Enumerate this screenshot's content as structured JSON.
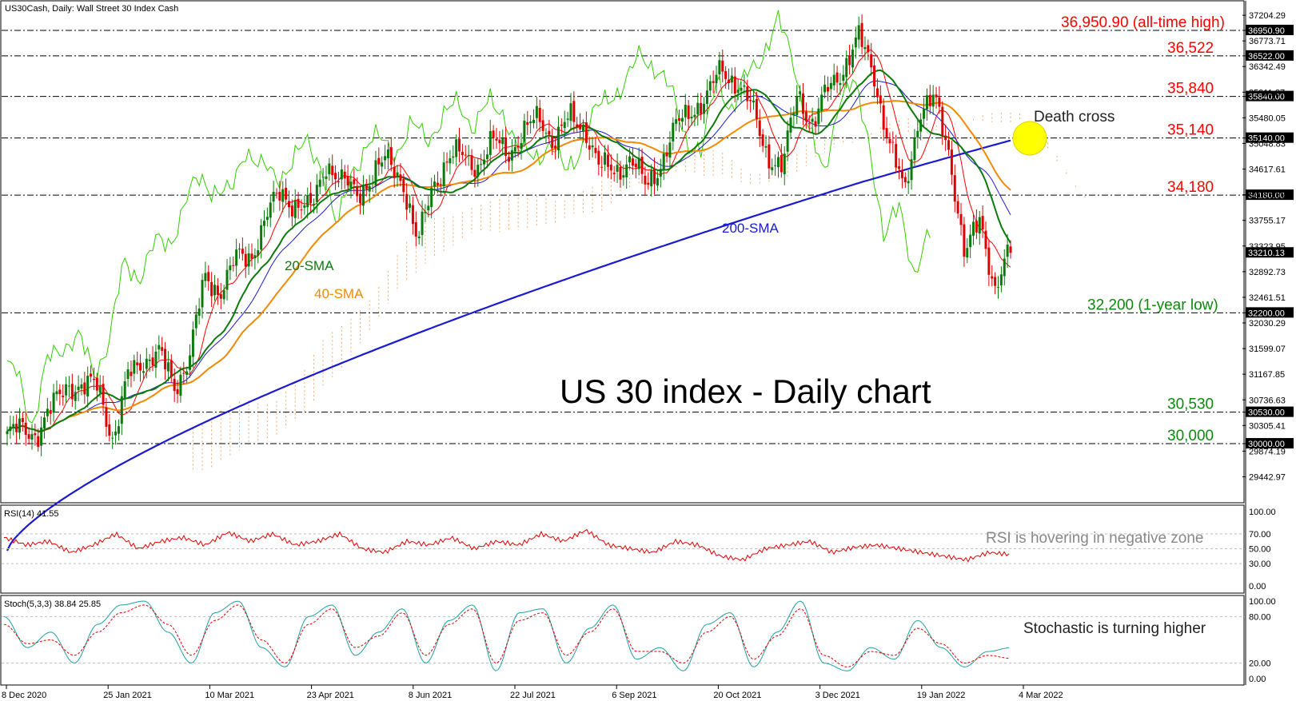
{
  "header": {
    "symbol_label": "US30Cash, Daily:  Wall Street 30 Index Cash",
    "chart_title": "US 30 index - Daily chart"
  },
  "colors": {
    "bull_candle": "#0b7a0b",
    "bear_candle": "#e00000",
    "sma20": "#0b7a0b",
    "sma40": "#f08a00",
    "sma200": "#1a1ad0",
    "tenkan": "#ff0000",
    "kijun": "#1a1ad0",
    "chikou": "#33cc00",
    "cloud": "#f0a060",
    "rsi_line": "#e00000",
    "stoch_main": "#20a0a0",
    "stoch_signal": "#e00000",
    "label_red": "#ff0000",
    "label_green": "#0b8a0b",
    "death_cross_marker": "#ffff00"
  },
  "chart_data": [
    {
      "type": "candlestick",
      "name": "price",
      "title": "US 30 index - Daily chart",
      "ylim": [
        29100,
        37300
      ],
      "y_ticks": [
        "37204.29",
        "36773.71",
        "36342.49",
        "35911.27",
        "35480.05",
        "35048.83",
        "34617.61",
        "34186.39",
        "33755.17",
        "33323.95",
        "32892.73",
        "32461.51",
        "32030.29",
        "31599.07",
        "31167.85",
        "30736.63",
        "30305.41",
        "29874.19",
        "29442.97"
      ],
      "x_tick_labels": [
        "8 Dec 2020",
        "25 Jan 2021",
        "10 Mar 2021",
        "23 Apr 2021",
        "8 Jun 2021",
        "22 Jul 2021",
        "6 Sep 2021",
        "20 Oct 2021",
        "3 Dec 2021",
        "19 Jan 2022",
        "4 Mar 2022"
      ],
      "close_path": [
        [
          "8 Dec 2020",
          30150
        ],
        [
          "16 Dec 2020",
          30230
        ],
        [
          "23 Dec 2020",
          30200
        ],
        [
          "31 Dec 2020",
          30600
        ],
        [
          "7 Jan 2021",
          31050
        ],
        [
          "15 Jan 2021",
          30900
        ],
        [
          "22 Jan 2021",
          30990
        ],
        [
          "29 Jan 2021",
          30050
        ],
        [
          "5 Feb 2021",
          31150
        ],
        [
          "12 Feb 2021",
          31450
        ],
        [
          "19 Feb 2021",
          31490
        ],
        [
          "26 Feb 2021",
          30950
        ],
        [
          "5 Mar 2021",
          31500
        ],
        [
          "12 Mar 2021",
          32750
        ],
        [
          "19 Mar 2021",
          32600
        ],
        [
          "26 Mar 2021",
          33070
        ],
        [
          "2 Apr 2021",
          33150
        ],
        [
          "9 Apr 2021",
          33800
        ],
        [
          "16 Apr 2021",
          34200
        ],
        [
          "23 Apr 2021",
          34050
        ],
        [
          "30 Apr 2021",
          33900
        ],
        [
          "7 May 2021",
          34780
        ],
        [
          "14 May 2021",
          34380
        ],
        [
          "21 May 2021",
          34200
        ],
        [
          "28 May 2021",
          34520
        ],
        [
          "4 Jun 2021",
          34750
        ],
        [
          "11 Jun 2021",
          34480
        ],
        [
          "18 Jun 2021",
          33300
        ],
        [
          "25 Jun 2021",
          34400
        ],
        [
          "2 Jul 2021",
          34780
        ],
        [
          "9 Jul 2021",
          34850
        ],
        [
          "16 Jul 2021",
          34700
        ],
        [
          "23 Jul 2021",
          35050
        ],
        [
          "30 Jul 2021",
          34950
        ],
        [
          "6 Aug 2021",
          35200
        ],
        [
          "13 Aug 2021",
          35500
        ],
        [
          "20 Aug 2021",
          35100
        ],
        [
          "27 Aug 2021",
          35450
        ],
        [
          "3 Sep 2021",
          35350
        ],
        [
          "10 Sep 2021",
          34600
        ],
        [
          "17 Sep 2021",
          34600
        ],
        [
          "24 Sep 2021",
          34800
        ],
        [
          "1 Oct 2021",
          34300
        ],
        [
          "8 Oct 2021",
          34750
        ],
        [
          "15 Oct 2021",
          35300
        ],
        [
          "22 Oct 2021",
          35650
        ],
        [
          "29 Oct 2021",
          35800
        ],
        [
          "5 Nov 2021",
          36300
        ],
        [
          "12 Nov 2021",
          36100
        ],
        [
          "19 Nov 2021",
          35600
        ],
        [
          "26 Nov 2021",
          34900
        ],
        [
          "3 Dec 2021",
          34600
        ],
        [
          "10 Dec 2021",
          35950
        ],
        [
          "17 Dec 2021",
          35350
        ],
        [
          "24 Dec 2021",
          35950
        ],
        [
          "31 Dec 2021",
          36350
        ],
        [
          "5 Jan 2022",
          36800
        ],
        [
          "12 Jan 2022",
          36250
        ],
        [
          "19 Jan 2022",
          35050
        ],
        [
          "26 Jan 2022",
          34200
        ],
        [
          "2 Feb 2022",
          35600
        ],
        [
          "9 Feb 2022",
          35750
        ],
        [
          "16 Feb 2022",
          34900
        ],
        [
          "23 Feb 2022",
          33100
        ],
        [
          "2 Mar 2022",
          33800
        ],
        [
          "8 Mar 2022",
          32600
        ],
        [
          "11 Mar 2022",
          33210.13
        ]
      ],
      "series": [
        {
          "name": "20-SMA"
        },
        {
          "name": "40-SMA"
        },
        {
          "name": "200-SMA"
        }
      ],
      "levels": [
        {
          "value": 36950.9,
          "label": "36,950.90 (all-time high)",
          "box": "36950.90",
          "color": "red"
        },
        {
          "value": 36522,
          "label": "36,522",
          "box": "36522.00",
          "color": "red"
        },
        {
          "value": 35840,
          "label": "35,840",
          "box": "35840.00",
          "color": "red"
        },
        {
          "value": 35140,
          "label": "35,140",
          "box": "35140.00",
          "color": "red"
        },
        {
          "value": 34180,
          "label": "34,180",
          "box": "34180.00",
          "color": "red"
        },
        {
          "value": 32200,
          "label": "32,200 (1-year low)",
          "box": "32200.00",
          "color": "green"
        },
        {
          "value": 30530,
          "label": "30,530",
          "box": "30530.00",
          "color": "green"
        },
        {
          "value": 30000,
          "label": "30,000",
          "box": "30000.00",
          "color": "green"
        }
      ],
      "current_price_box": "33210.13",
      "annotations": [
        "Death cross"
      ]
    },
    {
      "type": "line",
      "name": "rsi",
      "header": "RSI(14) 41.55",
      "ylim": [
        0,
        100
      ],
      "y_ticks": [
        "100.00",
        "70.00",
        "50.00",
        "30.00",
        "0.00"
      ],
      "annotation": "RSI is hovering in negative zone",
      "values": [
        65,
        55,
        60,
        45,
        55,
        70,
        50,
        60,
        65,
        55,
        72,
        60,
        70,
        55,
        60,
        70,
        50,
        45,
        60,
        55,
        65,
        50,
        60,
        55,
        70,
        60,
        75,
        55,
        50,
        45,
        60,
        55,
        40,
        35,
        50,
        55,
        60,
        45,
        52,
        55,
        50,
        45,
        40,
        35,
        45,
        42
      ]
    },
    {
      "type": "line",
      "name": "stochastic",
      "header": "Stoch(5,3,3) 38.84 25.85",
      "ylim": [
        0,
        100
      ],
      "y_ticks": [
        "100.00",
        "80.00",
        "20.00",
        "0.00"
      ],
      "annotation": "Stochastic is turning higher",
      "main": [
        80,
        40,
        60,
        20,
        70,
        95,
        100,
        60,
        20,
        85,
        100,
        40,
        15,
        80,
        95,
        30,
        60,
        90,
        20,
        75,
        95,
        10,
        85,
        90,
        20,
        65,
        95,
        25,
        40,
        10,
        70,
        85,
        15,
        60,
        100,
        20,
        10,
        40,
        25,
        75,
        40,
        15,
        35,
        40
      ],
      "signal": [
        70,
        45,
        50,
        30,
        60,
        85,
        95,
        70,
        30,
        75,
        95,
        50,
        20,
        70,
        90,
        40,
        55,
        85,
        30,
        70,
        90,
        20,
        75,
        85,
        30,
        60,
        90,
        35,
        35,
        20,
        60,
        80,
        25,
        55,
        90,
        30,
        15,
        35,
        30,
        65,
        45,
        20,
        30,
        26
      ]
    }
  ]
}
